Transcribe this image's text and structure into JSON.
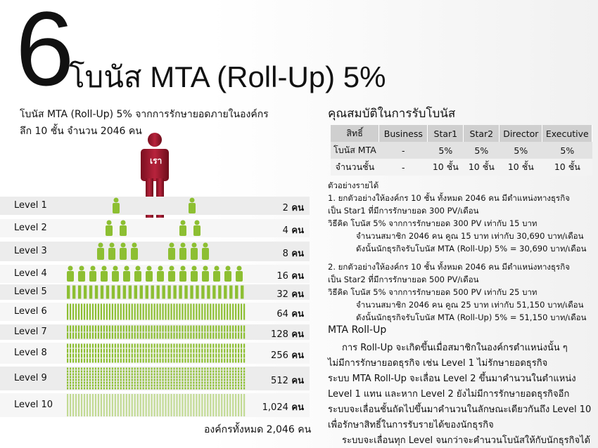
{
  "header": {
    "number": "6",
    "title": "โบนัส MTA (Roll-Up) 5%",
    "subtitle_line1": "โบนัส MTA (Roll-Up) 5% จากการรักษายอดภายในองค์กร",
    "subtitle_line2": "ลึก 10 ชั้น จำนวน 2046 คน"
  },
  "figure": {
    "you_label": "เรา",
    "accent_person": "#9c1b2e",
    "member_color": "#8dbf32"
  },
  "levels": [
    {
      "label": "Level 1",
      "count": "2",
      "unit": "คน"
    },
    {
      "label": "Level 2",
      "count": "4",
      "unit": "คน"
    },
    {
      "label": "Level 3",
      "count": "8",
      "unit": "คน"
    },
    {
      "label": "Level 4",
      "count": "16",
      "unit": "คน"
    },
    {
      "label": "Level 5",
      "count": "32",
      "unit": "คน"
    },
    {
      "label": "Level 6",
      "count": "64",
      "unit": "คน"
    },
    {
      "label": "Level 7",
      "count": "128",
      "unit": "คน"
    },
    {
      "label": "Level 8",
      "count": "256",
      "unit": "คน"
    },
    {
      "label": "Level 9",
      "count": "512",
      "unit": "คน"
    },
    {
      "label": "Level 10",
      "count": "1,024",
      "unit": "คน"
    }
  ],
  "total": "องค์กรทั้งหมด 2,046 คน",
  "qualification": {
    "title": "คุณสมบัติในการรับโบนัส",
    "headers": [
      "สิทธิ์",
      "Business",
      "Star1",
      "Star2",
      "Director",
      "Executive"
    ],
    "rows": [
      [
        "โบนัส MTA",
        "-",
        "5%",
        "5%",
        "5%",
        "5%"
      ],
      [
        "จำนวนชั้น",
        "-",
        "10 ชั้น",
        "10 ชั้น",
        "10 ชั้น",
        "10 ชั้น"
      ]
    ]
  },
  "examples": {
    "heading": "ตัวอย่างรายได้",
    "ex1": [
      "1. ยกตัวอย่างให้องค์กร 10 ชั้น ทั้งหมด 2046 คน มีตำแหน่งทางธุรกิจ",
      "เป็น Star1 ที่มีการรักษายอด 300 PV/เดือน",
      "วิธีคิด   โบนัส 5% จากการรักษายอด 300 PV  เท่ากับ 15 บาท",
      "จำนวนสมาชิก 2046 คน คูณ 15 บาท เท่ากับ 30,690 บาท/เดือน",
      "ดังนั้นนักธุรกิจรับโบนัส MTA (Roll-Up) 5% = 30,690 บาท/เดือน"
    ],
    "ex2": [
      "2. ยกตัวอย่างให้องค์กร 10 ชั้น ทั้งหมด 2046 คน มีตำแหน่งทางธุรกิจ",
      "เป็น Star2 ที่มีการรักษายอด 500 PV/เดือน",
      "วิธีคิด   โบนัส 5% จากการรักษายอด 500 PV  เท่ากับ 25 บาท",
      "จำนวนสมาชิก 2046 คน คูณ 25 บาท เท่ากับ 51,150 บาท/เดือน",
      "ดังนั้นนักธุรกิจรับโบนัส MTA (Roll-Up) 5% = 51,150 บาท/เดือน"
    ]
  },
  "mta_rollup": {
    "heading": "MTA Roll-Up",
    "lines": [
      "การ Roll-Up จะเกิดขึ้นเมื่อสมาชิกในองค์กรตำแหน่งนั้น ๆ",
      "ไม่มีการรักษายอดธุรกิจ เช่น Level 1 ไม่รักษายอดธุรกิจ",
      "ระบบ MTA Roll-Up จะเลื่อน Level 2 ขึ้นมาคำนวนในตำแหน่ง",
      "Level 1 แทน และหาก Level 2 ยังไม่มีการรักษายอดธุรกิจอีก",
      "ระบบจะเลื่อนชั้นถัดไปขึ้นมาคำนวนในลักษณะเดียวกันถึง Level 10",
      "เพื่อรักษาสิทธิ์ในการรับรายได้ของนักธุรกิจ",
      "ระบบจะเลื่อนทุก Level จนกว่าจะคำนวนโบนัสให้กับนักธุรกิจได้"
    ]
  }
}
